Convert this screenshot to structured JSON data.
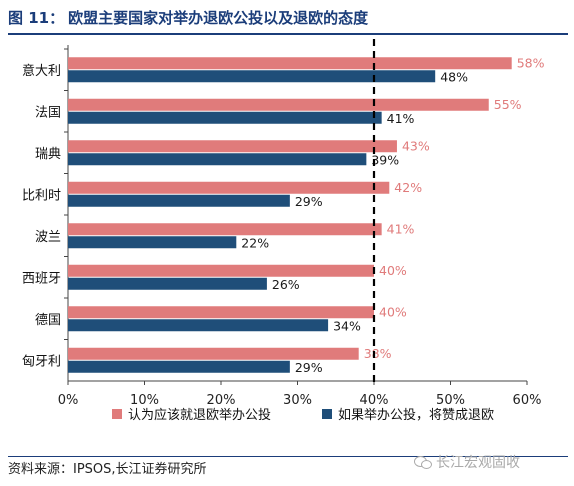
{
  "figure": {
    "label": "图 11：",
    "title": "欧盟主要国家对举办退欧公投以及退欧的态度"
  },
  "source": "资料来源：IPSOS,长江证券研究所",
  "watermark": "长江宏观固收",
  "colors": {
    "series1": "#e07b7b",
    "series2": "#1f4e79",
    "series1_label": "#e07b7b",
    "series2_label": "#1a1a1a",
    "reference_line": "#000000",
    "axis": "#444444"
  },
  "chart_data": {
    "type": "bar",
    "orientation": "horizontal",
    "categories": [
      "意大利",
      "法国",
      "瑞典",
      "比利时",
      "波兰",
      "西班牙",
      "德国",
      "匈牙利"
    ],
    "series": [
      {
        "name": "认为应该就退欧举办公投",
        "values": [
          58,
          55,
          43,
          42,
          41,
          40,
          40,
          38
        ]
      },
      {
        "name": "如果举办公投，将赞成退欧",
        "values": [
          48,
          41,
          39,
          29,
          22,
          26,
          34,
          29
        ]
      }
    ],
    "x_ticks": [
      "0%",
      "10%",
      "20%",
      "30%",
      "40%",
      "50%",
      "60%"
    ],
    "xlim": [
      0,
      60
    ],
    "value_suffix": "%",
    "reference_line": {
      "value": 40,
      "style": "dashed"
    },
    "legend_position": "bottom",
    "grid": false
  }
}
